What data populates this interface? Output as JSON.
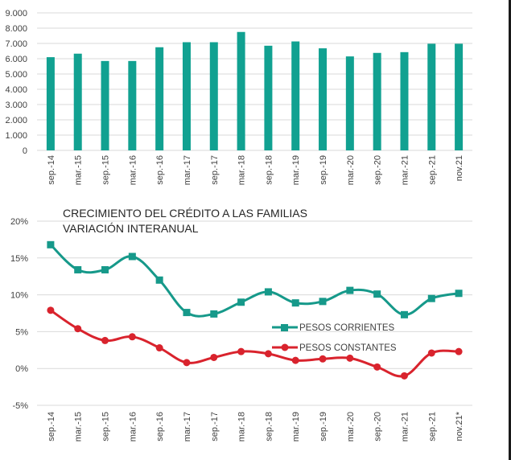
{
  "chart_data": [
    {
      "type": "bar",
      "title": "",
      "xlabel": "",
      "ylabel": "",
      "categories": [
        "sep.-14",
        "mar.-15",
        "sep.-15",
        "mar.-16",
        "sep.-16",
        "mar.-17",
        "sep.-17",
        "mar.-18",
        "sep.-18",
        "mar.-19",
        "sep.-19",
        "mar.-20",
        "sep.-20",
        "mar.-21",
        "sep.-21",
        "nov.21"
      ],
      "values": [
        6100,
        6330,
        5850,
        5850,
        6750,
        7080,
        7080,
        7750,
        6850,
        7130,
        6680,
        6150,
        6380,
        6430,
        6980,
        6980
      ],
      "ylim": [
        0,
        9000
      ],
      "yticks": [
        0,
        1000,
        2000,
        3000,
        4000,
        5000,
        6000,
        7000,
        8000,
        9000
      ],
      "ytick_labels": [
        "0",
        "1.000",
        "2.000",
        "3.000",
        "4.000",
        "5.000",
        "6.000",
        "7.000",
        "8.000",
        "9.000"
      ],
      "grid": true,
      "color": "#11a191"
    },
    {
      "type": "line",
      "title": "CRECIMIENTO DEL CRÉDITO A LAS FAMILIAS",
      "subtitle": "VARIACIÓN INTERANUAL",
      "xlabel": "",
      "ylabel": "",
      "categories": [
        "sep.-14",
        "mar.-15",
        "sep.-15",
        "mar.-16",
        "sep.-16",
        "mar.-17",
        "sep.-17",
        "mar.-18",
        "sep.-18",
        "mar.-19",
        "sep.-19",
        "mar.-20",
        "sep.-20",
        "mar.-21",
        "sep.-21",
        "nov.21*"
      ],
      "ylim": [
        -5,
        20
      ],
      "yticks": [
        -5,
        0,
        5,
        10,
        15,
        20
      ],
      "ytick_labels": [
        "-5%",
        "0%",
        "5%",
        "10%",
        "15%",
        "20%"
      ],
      "grid": true,
      "legend_position": "center-right",
      "series": [
        {
          "name": "PESOS CORRIENTES",
          "marker": "square",
          "color": "#16998a",
          "values": [
            16.8,
            13.4,
            13.4,
            15.2,
            12.0,
            7.6,
            7.4,
            9.0,
            10.4,
            8.9,
            9.1,
            10.6,
            10.1,
            7.3,
            9.5,
            10.2
          ]
        },
        {
          "name": "PESOS CONSTANTES",
          "marker": "circle",
          "color": "#d9232d",
          "values": [
            7.9,
            5.4,
            3.8,
            4.3,
            2.8,
            0.8,
            1.5,
            2.3,
            2.0,
            1.1,
            1.3,
            1.4,
            0.2,
            -1.0,
            2.1,
            2.3
          ]
        }
      ]
    }
  ]
}
